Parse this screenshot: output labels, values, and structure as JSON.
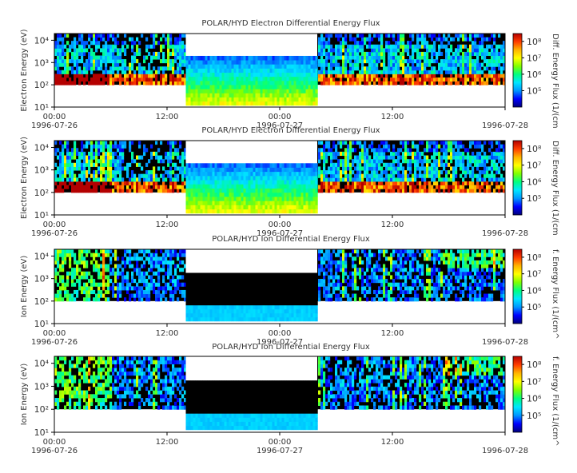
{
  "colors": {
    "background": "#ffffff",
    "axis": "#000000",
    "fill_gap": "#000000",
    "no_data": "#ffffff",
    "colormap": [
      "#00007a",
      "#0000ff",
      "#0096ff",
      "#00e6ff",
      "#00ff80",
      "#80ff00",
      "#ffff00",
      "#ffb400",
      "#ff3c00",
      "#b40000"
    ]
  },
  "time_axis": {
    "start": "1996-07-26T00:00",
    "end": "1996-07-28T00:00",
    "ticks": [
      {
        "time": "00:00",
        "date": "1996-07-26"
      },
      {
        "time": "12:00",
        "date": ""
      },
      {
        "time": "00:00",
        "date": "1996-07-27"
      },
      {
        "time": "12:00",
        "date": ""
      },
      {
        "time": "",
        "date": "1996-07-28"
      }
    ]
  },
  "chart_data": [
    {
      "type": "heatmap",
      "title": "POLAR/HYD  Electron Differential Energy Flux",
      "ylabel": "Electron Energy (eV)",
      "y_scale": "log",
      "ylim": [
        10,
        20000
      ],
      "yticks": [
        "10¹",
        "10²",
        "10³",
        "10⁴"
      ],
      "colorbar_label": "Diff. Energy Flux (1/(cm",
      "colorbar_ticks": [
        "10⁵",
        "10⁶",
        "10⁷",
        "10⁸"
      ],
      "colorbar_range": [
        10000,
        300000000
      ],
      "data_gap": {
        "start": "1996-07-26T14:00",
        "end": "1996-07-27T04:00"
      }
    },
    {
      "type": "heatmap",
      "title": "POLAR/HYD  Electron Differential Energy Flux",
      "ylabel": "Electron Energy (eV)",
      "y_scale": "log",
      "ylim": [
        10,
        20000
      ],
      "yticks": [
        "10¹",
        "10²",
        "10³",
        "10⁴"
      ],
      "colorbar_label": "Diff. Energy Flux (1/(cm",
      "colorbar_ticks": [
        "10⁵",
        "10⁶",
        "10⁷",
        "10⁸"
      ],
      "colorbar_range": [
        10000,
        300000000
      ],
      "data_gap": {
        "start": "1996-07-26T14:00",
        "end": "1996-07-27T04:00"
      }
    },
    {
      "type": "heatmap",
      "title": "POLAR/HYD  Ion Differential Energy Flux",
      "ylabel": "Ion Energy (eV)",
      "y_scale": "log",
      "ylim": [
        10,
        20000
      ],
      "yticks": [
        "10¹",
        "10²",
        "10³",
        "10⁴"
      ],
      "colorbar_label": "f. Energy Flux (1/(cm^",
      "colorbar_ticks": [
        "10⁵",
        "10⁶",
        "10⁷",
        "10⁸"
      ],
      "colorbar_range": [
        10000,
        300000000
      ],
      "data_gap": {
        "start": "1996-07-26T14:00",
        "end": "1996-07-27T04:00"
      }
    },
    {
      "type": "heatmap",
      "title": "POLAR/HYD  Ion Differential Energy Flux",
      "ylabel": "Ion Energy (eV)",
      "y_scale": "log",
      "ylim": [
        10,
        20000
      ],
      "yticks": [
        "10¹",
        "10²",
        "10³",
        "10⁴"
      ],
      "colorbar_label": "f. Energy Flux (1/(cm^",
      "colorbar_ticks": [
        "10⁵",
        "10⁶",
        "10⁷",
        "10⁸"
      ],
      "colorbar_range": [
        10000,
        300000000
      ],
      "data_gap": {
        "start": "1996-07-26T14:00",
        "end": "1996-07-27T04:00"
      }
    }
  ]
}
